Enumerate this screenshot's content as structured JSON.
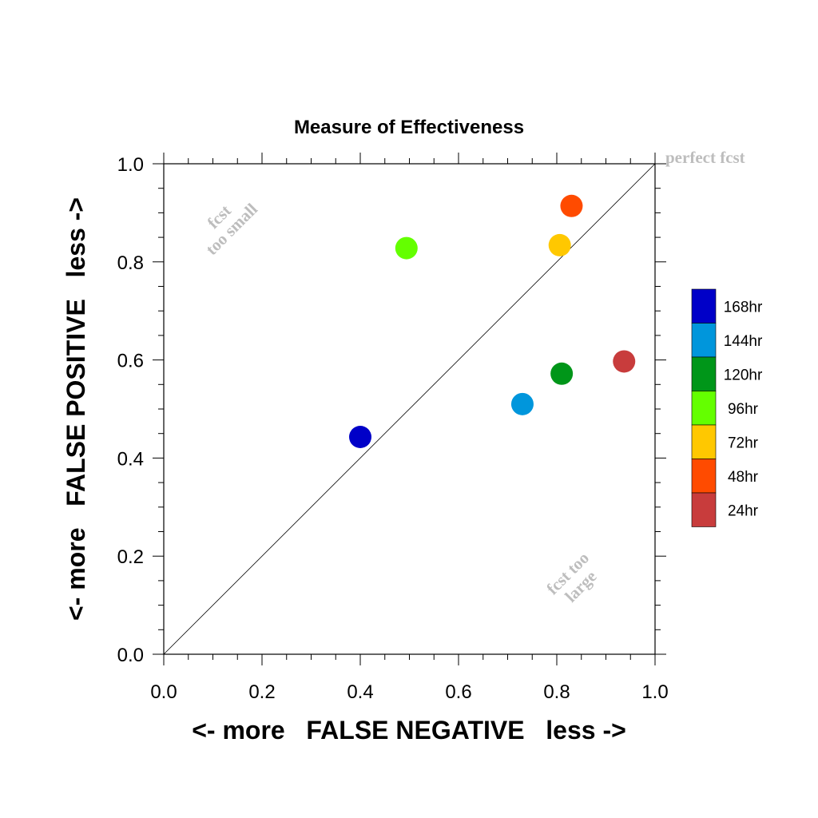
{
  "chart_data": {
    "type": "scatter",
    "title": "Measure of Effectiveness",
    "xlabel": "<- more   FALSE NEGATIVE   less ->",
    "ylabel": "<- more   FALSE POSITIVE   less ->",
    "xlim": [
      0,
      1
    ],
    "ylim": [
      0,
      1
    ],
    "x_ticks": [
      "0.0",
      "0.2",
      "0.4",
      "0.6",
      "0.8",
      "1.0"
    ],
    "y_ticks": [
      "0.0",
      "0.2",
      "0.4",
      "0.6",
      "0.8",
      "1.0"
    ],
    "grid": false,
    "reference_line": "y = x",
    "legend_position": "right",
    "series": [
      {
        "name": "168hr",
        "color": "#0000c8",
        "x": 0.4,
        "y": 0.443
      },
      {
        "name": "144hr",
        "color": "#0096dc",
        "x": 0.73,
        "y": 0.51
      },
      {
        "name": "120hr",
        "color": "#009619",
        "x": 0.81,
        "y": 0.572
      },
      {
        "name": "96hr",
        "color": "#64ff00",
        "x": 0.494,
        "y": 0.828
      },
      {
        "name": "72hr",
        "color": "#ffc800",
        "x": 0.806,
        "y": 0.834
      },
      {
        "name": "48hr",
        "color": "#ff4b00",
        "x": 0.83,
        "y": 0.914
      },
      {
        "name": "24hr",
        "color": "#c83c3c",
        "x": 0.937,
        "y": 0.597
      }
    ],
    "annotations": {
      "perfect": "perfect fcst",
      "small_line1": "fcst",
      "small_line2": "too small",
      "large_line1": "fcst too",
      "large_line2": "large"
    }
  }
}
